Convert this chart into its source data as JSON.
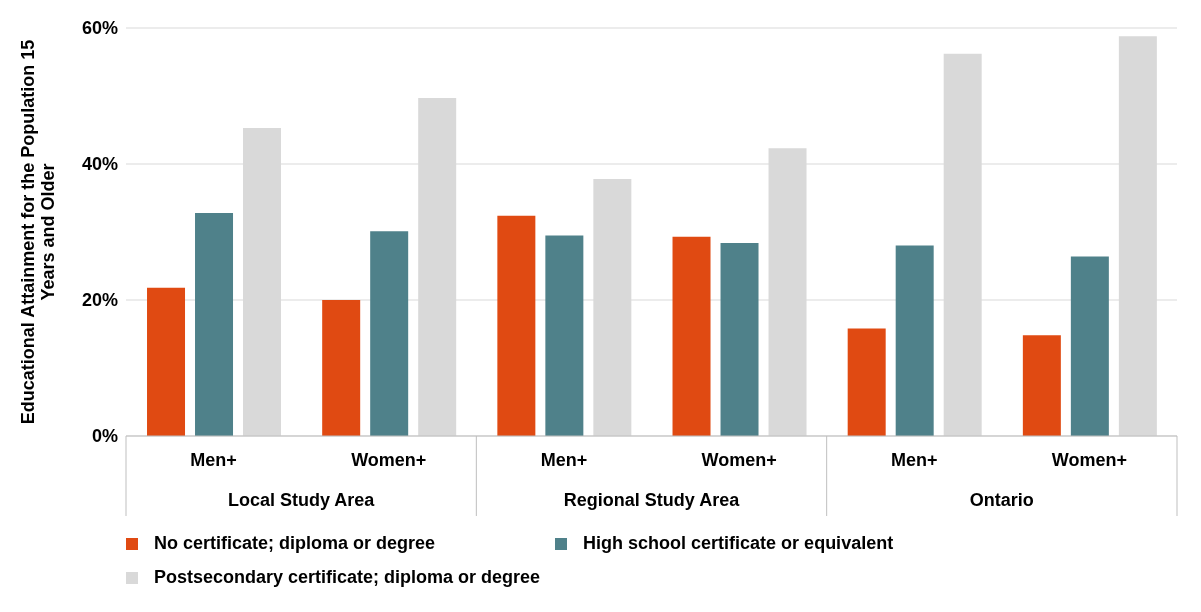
{
  "chart_data": {
    "type": "bar",
    "ylabel": "Educational Attainment for the Population 15 Years and Older",
    "categories": [
      "Men+",
      "Women+",
      "Men+",
      "Women+",
      "Men+",
      "Women+"
    ],
    "annotations": [
      "Local Study Area",
      "Regional Study Area",
      "Ontario"
    ],
    "series": [
      {
        "name": "No certificate; diploma or degree",
        "color": "#e04a12",
        "values": [
          21.8,
          20.0,
          32.4,
          29.3,
          15.8,
          14.8
        ]
      },
      {
        "name": "High school certificate or equivalent",
        "color": "#4f818a",
        "values": [
          32.8,
          30.1,
          29.5,
          28.4,
          28.0,
          26.4
        ]
      },
      {
        "name": "Postsecondary certificate; diploma or degree",
        "color": "#d9d9d9",
        "values": [
          45.3,
          49.7,
          37.8,
          42.3,
          56.2,
          58.8
        ]
      }
    ],
    "ylim": [
      0,
      60
    ],
    "yticks": [
      {
        "value": 0,
        "label": "0%"
      },
      {
        "value": 20,
        "label": "20%"
      },
      {
        "value": 40,
        "label": "40%"
      },
      {
        "value": 60,
        "label": "60%"
      }
    ],
    "grid": "y",
    "legend": "bottom"
  }
}
